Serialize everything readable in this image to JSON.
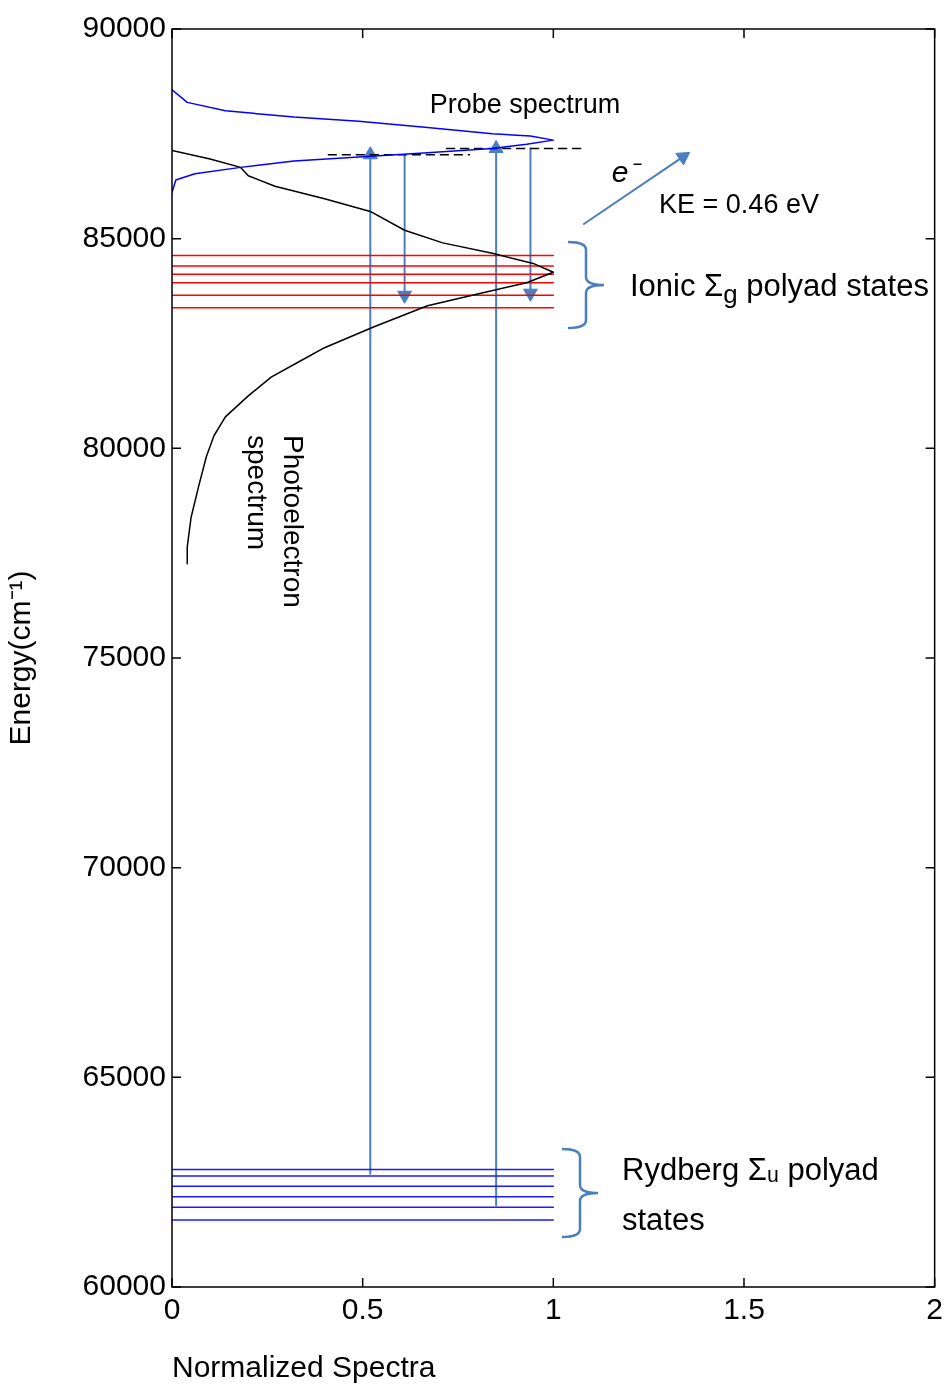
{
  "chart_data": {
    "type": "line",
    "xlabel": "Normalized Spectra",
    "ylabel": "Energy(cm⁻¹)",
    "xlim": [
      0,
      2
    ],
    "ylim": [
      60000,
      90000
    ],
    "xticks": [
      0,
      0.5,
      1,
      1.5,
      2
    ],
    "yticks": [
      60000,
      65000,
      70000,
      75000,
      80000,
      85000,
      90000
    ],
    "grid": false,
    "legend": false,
    "marker": "none",
    "annotations": [
      "Probe spectrum",
      "Photoelectron spectrum",
      "e⁻",
      "KE = 0.46 eV",
      "Ionic Σ$_{g}$ polyad states",
      "Rydberg Σᵤ polyad states"
    ],
    "series": [
      {
        "color": "#0000ff",
        "x": [
          0,
          0.04,
          0.14,
          0.32,
          0.49,
          0.67,
          0.84,
          0.94,
          1.0,
          0.93,
          0.84,
          0.67,
          0.49,
          0.32,
          0.18,
          0.06,
          0.01,
          0
        ],
        "values": [
          88550,
          88250,
          88050,
          87900,
          87800,
          87650,
          87500,
          87450,
          87350,
          87250,
          87150,
          87050,
          86950,
          86850,
          86700,
          86550,
          86400,
          86100
        ]
      },
      {
        "color": "#000000",
        "x": [
          0,
          0.1,
          0.18,
          0.2,
          0.27,
          0.4,
          0.52,
          0.61,
          0.71,
          0.84,
          0.95,
          1.0,
          0.93,
          0.81,
          0.67,
          0.53,
          0.4,
          0.34,
          0.26,
          0.2,
          0.14,
          0.11,
          0.09,
          0.07,
          0.05,
          0.04,
          0.04
        ],
        "values": [
          87100,
          86900,
          86700,
          86500,
          86250,
          85950,
          85650,
          85200,
          84900,
          84650,
          84400,
          84200,
          83950,
          83700,
          83400,
          82900,
          82400,
          82100,
          81700,
          81250,
          80750,
          80300,
          79800,
          79100,
          78350,
          77650,
          77250
        ]
      },
      {
        "color": "#ff0000",
        "x": [
          0,
          1
        ],
        "values": [
          84600,
          84600
        ]
      },
      {
        "color": "#ff0000",
        "x": [
          0,
          1
        ],
        "values": [
          84350,
          84350
        ]
      },
      {
        "color": "#ff0000",
        "x": [
          0,
          1
        ],
        "values": [
          84150,
          84150
        ]
      },
      {
        "color": "#ff0000",
        "x": [
          0,
          1
        ],
        "values": [
          83950,
          83950
        ]
      },
      {
        "color": "#ff0000",
        "x": [
          0,
          1
        ],
        "values": [
          83650,
          83650
        ]
      },
      {
        "color": "#ff0000",
        "x": [
          0,
          1
        ],
        "values": [
          83350,
          83350
        ]
      },
      {
        "color": "#1a1aff",
        "x": [
          0,
          1
        ],
        "values": [
          62800,
          62800
        ]
      },
      {
        "color": "#1a1aff",
        "x": [
          0,
          1
        ],
        "values": [
          62650,
          62650
        ]
      },
      {
        "color": "#1a1aff",
        "x": [
          0,
          1
        ],
        "values": [
          62400,
          62400
        ]
      },
      {
        "color": "#1a1aff",
        "x": [
          0,
          1
        ],
        "values": [
          62150,
          62150
        ]
      },
      {
        "color": "#1a1aff",
        "x": [
          0,
          1
        ],
        "values": [
          61900,
          61900
        ]
      },
      {
        "color": "#1a1aff",
        "x": [
          0,
          1
        ],
        "values": [
          61600,
          61600
        ]
      },
      {
        "color": "#000000",
        "line_style": "dashed",
        "x": [
          0.41,
          0.78
        ],
        "values": [
          87000,
          87000
        ]
      },
      {
        "color": "#000000",
        "line_style": "dashed",
        "x": [
          0.72,
          1.08
        ],
        "values": [
          87150,
          87150
        ]
      },
      {
        "color": "#4a7ebf",
        "marker": "triangle",
        "x": [
          0.52,
          0.52
        ],
        "values": [
          62700,
          87000
        ]
      },
      {
        "color": "#4a7ebf",
        "marker": "triangle",
        "x": [
          0.61,
          0.61
        ],
        "values": [
          87000,
          83650
        ]
      },
      {
        "color": "#4a7ebf",
        "marker": "triangle",
        "x": [
          0.85,
          0.85
        ],
        "values": [
          61950,
          87150
        ]
      },
      {
        "color": "#4a7ebf",
        "marker": "triangle",
        "x": [
          0.94,
          0.94
        ],
        "values": [
          87150,
          83700
        ]
      },
      {
        "color": "#4a7ebf",
        "marker": "triangle",
        "x": [
          1.08,
          1.34
        ],
        "values": [
          85350,
          86950
        ]
      }
    ]
  }
}
